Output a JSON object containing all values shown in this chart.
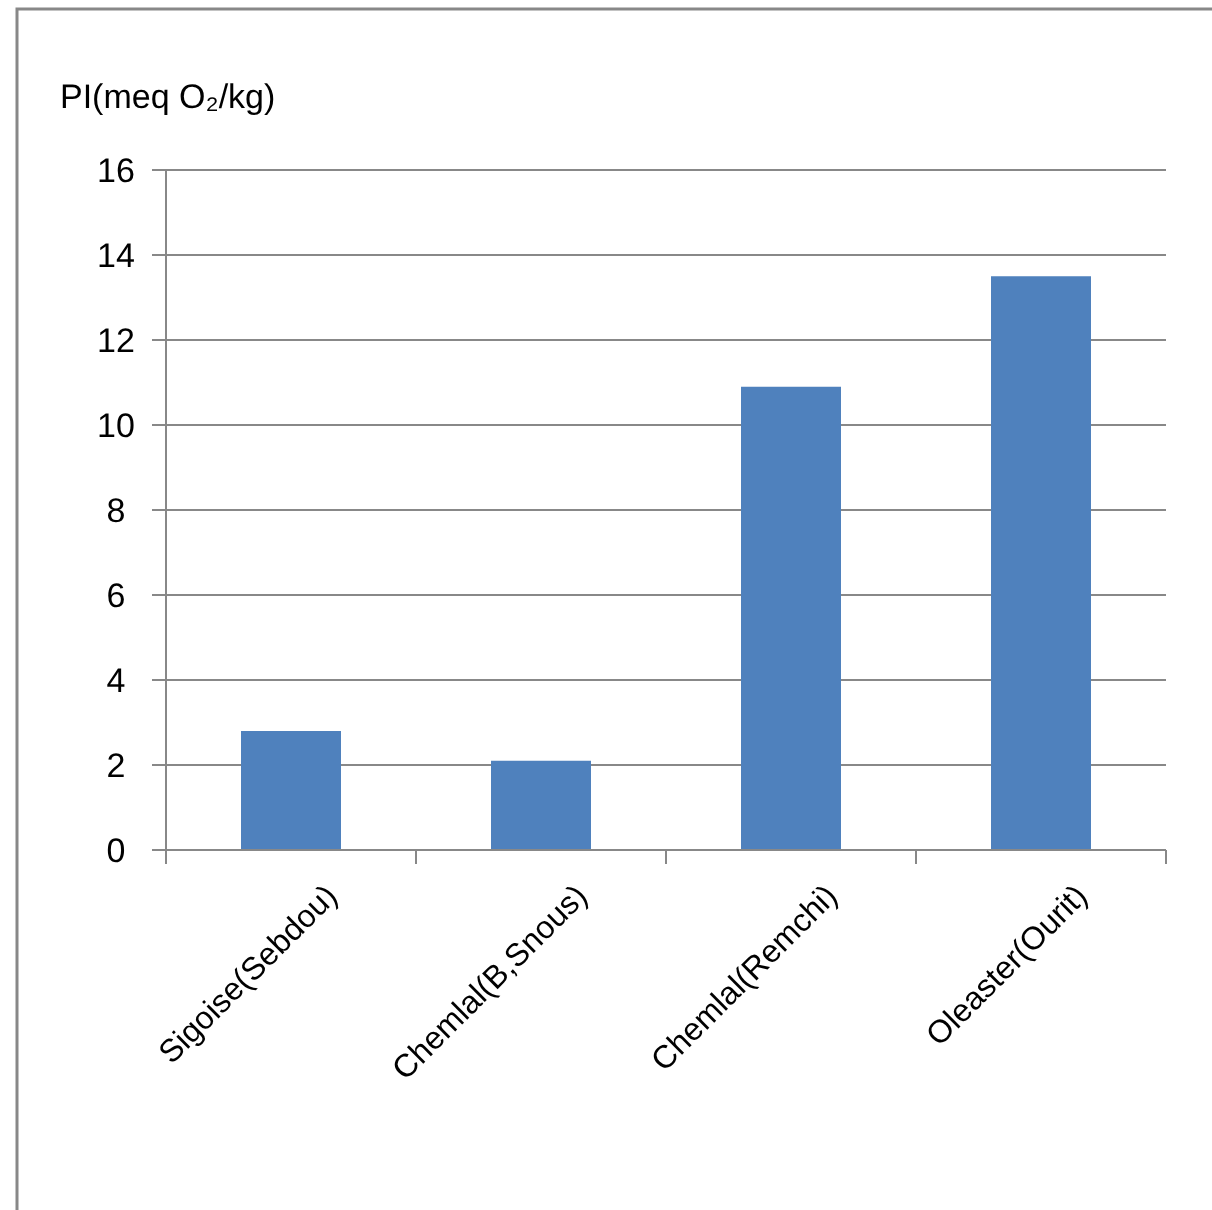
{
  "chart_data": {
    "type": "bar",
    "ylabel": "PI(meq O₂/kg)",
    "categories": [
      "Sigoise(Sebdou)",
      "Chemlal(B,Snous)",
      "Chemlal(Remchi)",
      "Oleaster(Ourit)"
    ],
    "values": [
      2.8,
      2.1,
      10.9,
      13.5
    ],
    "color": "#4f81bd",
    "ylim": [
      0,
      16
    ],
    "yticks": [
      0,
      2,
      4,
      6,
      8,
      10,
      12,
      14,
      16
    ],
    "grid": "y"
  }
}
